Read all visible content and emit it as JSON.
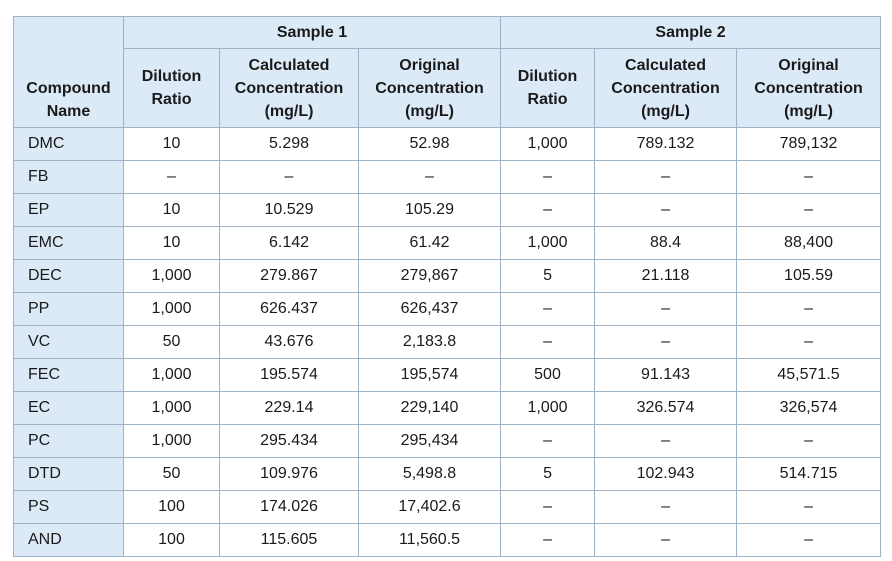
{
  "table": {
    "header": {
      "compound": "Compound Name",
      "groups": [
        "Sample 1",
        "Sample 2"
      ],
      "columns": [
        "Dilution Ratio",
        "Calculated Concentration (mg/L)",
        "Original Concentration (mg/L)",
        "Dilution Ratio",
        "Calculated Concentration (mg/L)",
        "Original Concentration (mg/L)"
      ]
    },
    "rows": [
      [
        "DMC",
        "10",
        "5.298",
        "52.98",
        "1,000",
        "789.132",
        "789,132"
      ],
      [
        "FB",
        "–",
        "–",
        "–",
        "–",
        "–",
        "–"
      ],
      [
        "EP",
        "10",
        "10.529",
        "105.29",
        "–",
        "–",
        "–"
      ],
      [
        "EMC",
        "10",
        "6.142",
        "61.42",
        "1,000",
        "88.4",
        "88,400"
      ],
      [
        "DEC",
        "1,000",
        "279.867",
        "279,867",
        "5",
        "21.118",
        "105.59"
      ],
      [
        "PP",
        "1,000",
        "626.437",
        "626,437",
        "–",
        "–",
        "–"
      ],
      [
        "VC",
        "50",
        "43.676",
        "2,183.8",
        "–",
        "–",
        "–"
      ],
      [
        "FEC",
        "1,000",
        "195.574",
        "195,574",
        "500",
        "91.143",
        "45,571.5"
      ],
      [
        "EC",
        "1,000",
        "229.14",
        "229,140",
        "1,000",
        "326.574",
        "326,574"
      ],
      [
        "PC",
        "1,000",
        "295.434",
        "295,434",
        "–",
        "–",
        "–"
      ],
      [
        "DTD",
        "50",
        "109.976",
        "5,498.8",
        "5",
        "102.943",
        "514.715"
      ],
      [
        "PS",
        "100",
        "174.026",
        "17,402.6",
        "–",
        "–",
        "–"
      ],
      [
        "AND",
        "100",
        "115.605",
        "11,560.5",
        "–",
        "–",
        "–"
      ]
    ]
  }
}
